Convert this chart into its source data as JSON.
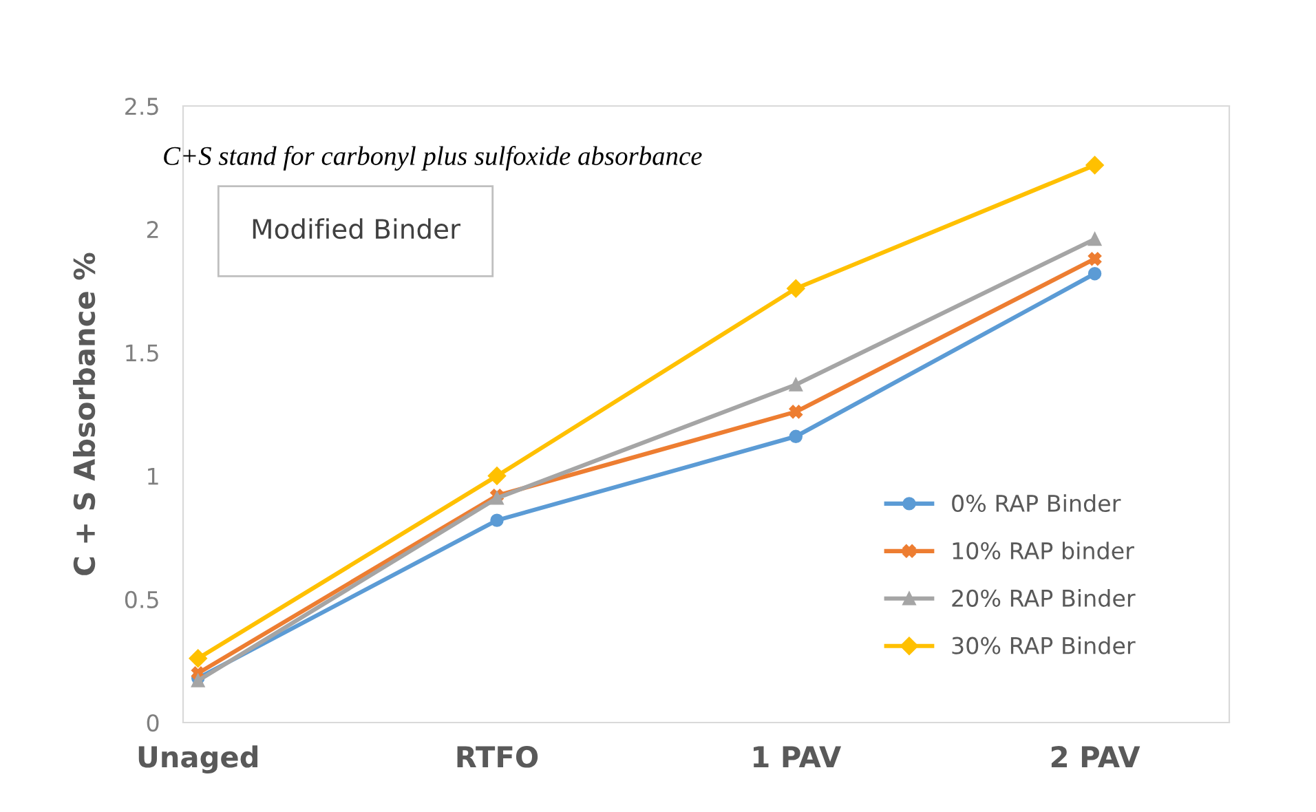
{
  "chart_data": {
    "type": "line",
    "ylabel": "C + S Absorbance %",
    "annotations": [
      "C+S stand for carbonyl plus sulfoxide absorbance",
      "Modified Binder"
    ],
    "categories": [
      "Unaged",
      "RTFO",
      "1 PAV",
      "2 PAV"
    ],
    "ylim": [
      0,
      2.5
    ],
    "yticks": [
      0,
      0.5,
      1,
      1.5,
      2,
      2.5
    ],
    "grid": false,
    "legend": "bottom right",
    "series": [
      {
        "name": "0% RAP Binder",
        "color": "#5b9bd5",
        "marker": "circle",
        "values": [
          0.18,
          0.82,
          1.16,
          1.82
        ]
      },
      {
        "name": "10% RAP binder",
        "color": "#ed7d31",
        "marker": "cross",
        "values": [
          0.2,
          0.92,
          1.26,
          1.88
        ]
      },
      {
        "name": "20% RAP Binder",
        "color": "#a5a5a5",
        "marker": "triangle",
        "values": [
          0.17,
          0.91,
          1.37,
          1.96
        ]
      },
      {
        "name": "30% RAP Binder",
        "color": "#ffc000",
        "marker": "diamond",
        "values": [
          0.26,
          1.0,
          1.76,
          2.26
        ]
      }
    ]
  }
}
